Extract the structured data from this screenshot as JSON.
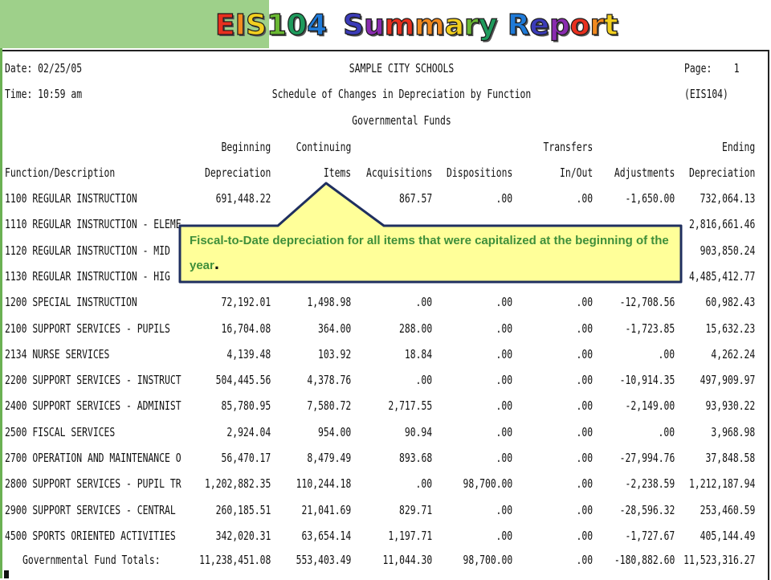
{
  "title": {
    "part1": "EIS104",
    "part2": "Summary Report",
    "colors": [
      "#e8301f",
      "#f28a1f",
      "#f2cf1f",
      "#6ab833",
      "#1f9a5c",
      "#1f7ad8",
      "#3b3bb8",
      "#8a2bb0"
    ]
  },
  "report": {
    "date": "Date: 02/25/05",
    "time": "Time: 10:59 am",
    "org": "SAMPLE CITY SCHOOLS",
    "subtitle": "Schedule of Changes in Depreciation by Function",
    "fund": "Governmental Funds",
    "page": "Page:    1",
    "report_id": "(EIS104)"
  },
  "columns": {
    "h1": [
      "",
      "Beginning",
      "Continuing",
      "",
      "",
      "Transfers",
      "",
      "Ending"
    ],
    "h2": [
      "Function/Description",
      "Depreciation",
      "Items",
      "Acquisitions",
      "Dispositions",
      "In/Out",
      "Adjustments",
      "Depreciation"
    ]
  },
  "rows": [
    [
      "1100 REGULAR INSTRUCTION",
      "691,448.22",
      "",
      "867.57",
      ".00",
      ".00",
      "-1,650.00",
      "732,064.13"
    ],
    [
      "1110 REGULAR INSTRUCTION - ELEME",
      "",
      "",
      "",
      "",
      "",
      "",
      "2,816,661.46"
    ],
    [
      "1120 REGULAR INSTRUCTION - MID",
      "",
      "",
      "",
      "",
      "",
      "",
      "903,850.24"
    ],
    [
      "1130 REGULAR INSTRUCTION - HIG",
      "",
      "",
      "",
      "",
      "",
      "",
      "4,485,412.77"
    ],
    [
      "1200 SPECIAL INSTRUCTION",
      "72,192.01",
      "1,498.98",
      ".00",
      ".00",
      ".00",
      "-12,708.56",
      "60,982.43"
    ],
    [
      "2100 SUPPORT SERVICES - PUPILS",
      "16,704.08",
      "364.00",
      "288.00",
      ".00",
      ".00",
      "-1,723.85",
      "15,632.23"
    ],
    [
      "2134 NURSE SERVICES",
      "4,139.48",
      "103.92",
      "18.84",
      ".00",
      ".00",
      ".00",
      "4,262.24"
    ],
    [
      "2200 SUPPORT SERVICES - INSTRUCT",
      "504,445.56",
      "4,378.76",
      ".00",
      ".00",
      ".00",
      "-10,914.35",
      "497,909.97"
    ],
    [
      "2400 SUPPORT SERVICES - ADMINIST",
      "85,780.95",
      "7,580.72",
      "2,717.55",
      ".00",
      ".00",
      "-2,149.00",
      "93,930.22"
    ],
    [
      "2500 FISCAL SERVICES",
      "2,924.04",
      "954.00",
      "90.94",
      ".00",
      ".00",
      ".00",
      "3,968.98"
    ],
    [
      "2700 OPERATION AND MAINTENANCE O",
      "56,470.17",
      "8,479.49",
      "893.68",
      ".00",
      ".00",
      "-27,994.76",
      "37,848.58"
    ],
    [
      "2800 SUPPORT SERVICES - PUPIL TR",
      "1,202,882.35",
      "110,244.18",
      ".00",
      "98,700.00",
      ".00",
      "-2,238.59",
      "1,212,187.94"
    ],
    [
      "2900 SUPPORT SERVICES - CENTRAL",
      "260,185.51",
      "21,041.69",
      "829.71",
      ".00",
      ".00",
      "-28,596.32",
      "253,460.59"
    ],
    [
      "4500 SPORTS ORIENTED ACTIVITIES",
      "342,020.31",
      "63,654.14",
      "1,197.71",
      ".00",
      ".00",
      "-1,727.67",
      "405,144.49"
    ]
  ],
  "totals": [
    "Governmental Fund Totals:",
    "11,238,451.08",
    "553,403.49",
    "11,044.30",
    "98,700.00",
    ".00",
    "-180,882.60",
    "11,523,316.27"
  ],
  "callout": {
    "text": "Fiscal-to-Date depreciation for all items that were capitalized at the beginning of the year",
    "period": ".",
    "fill": "#ffff99",
    "border": "#1f2f5f",
    "text_color": "#3f8f3a"
  }
}
